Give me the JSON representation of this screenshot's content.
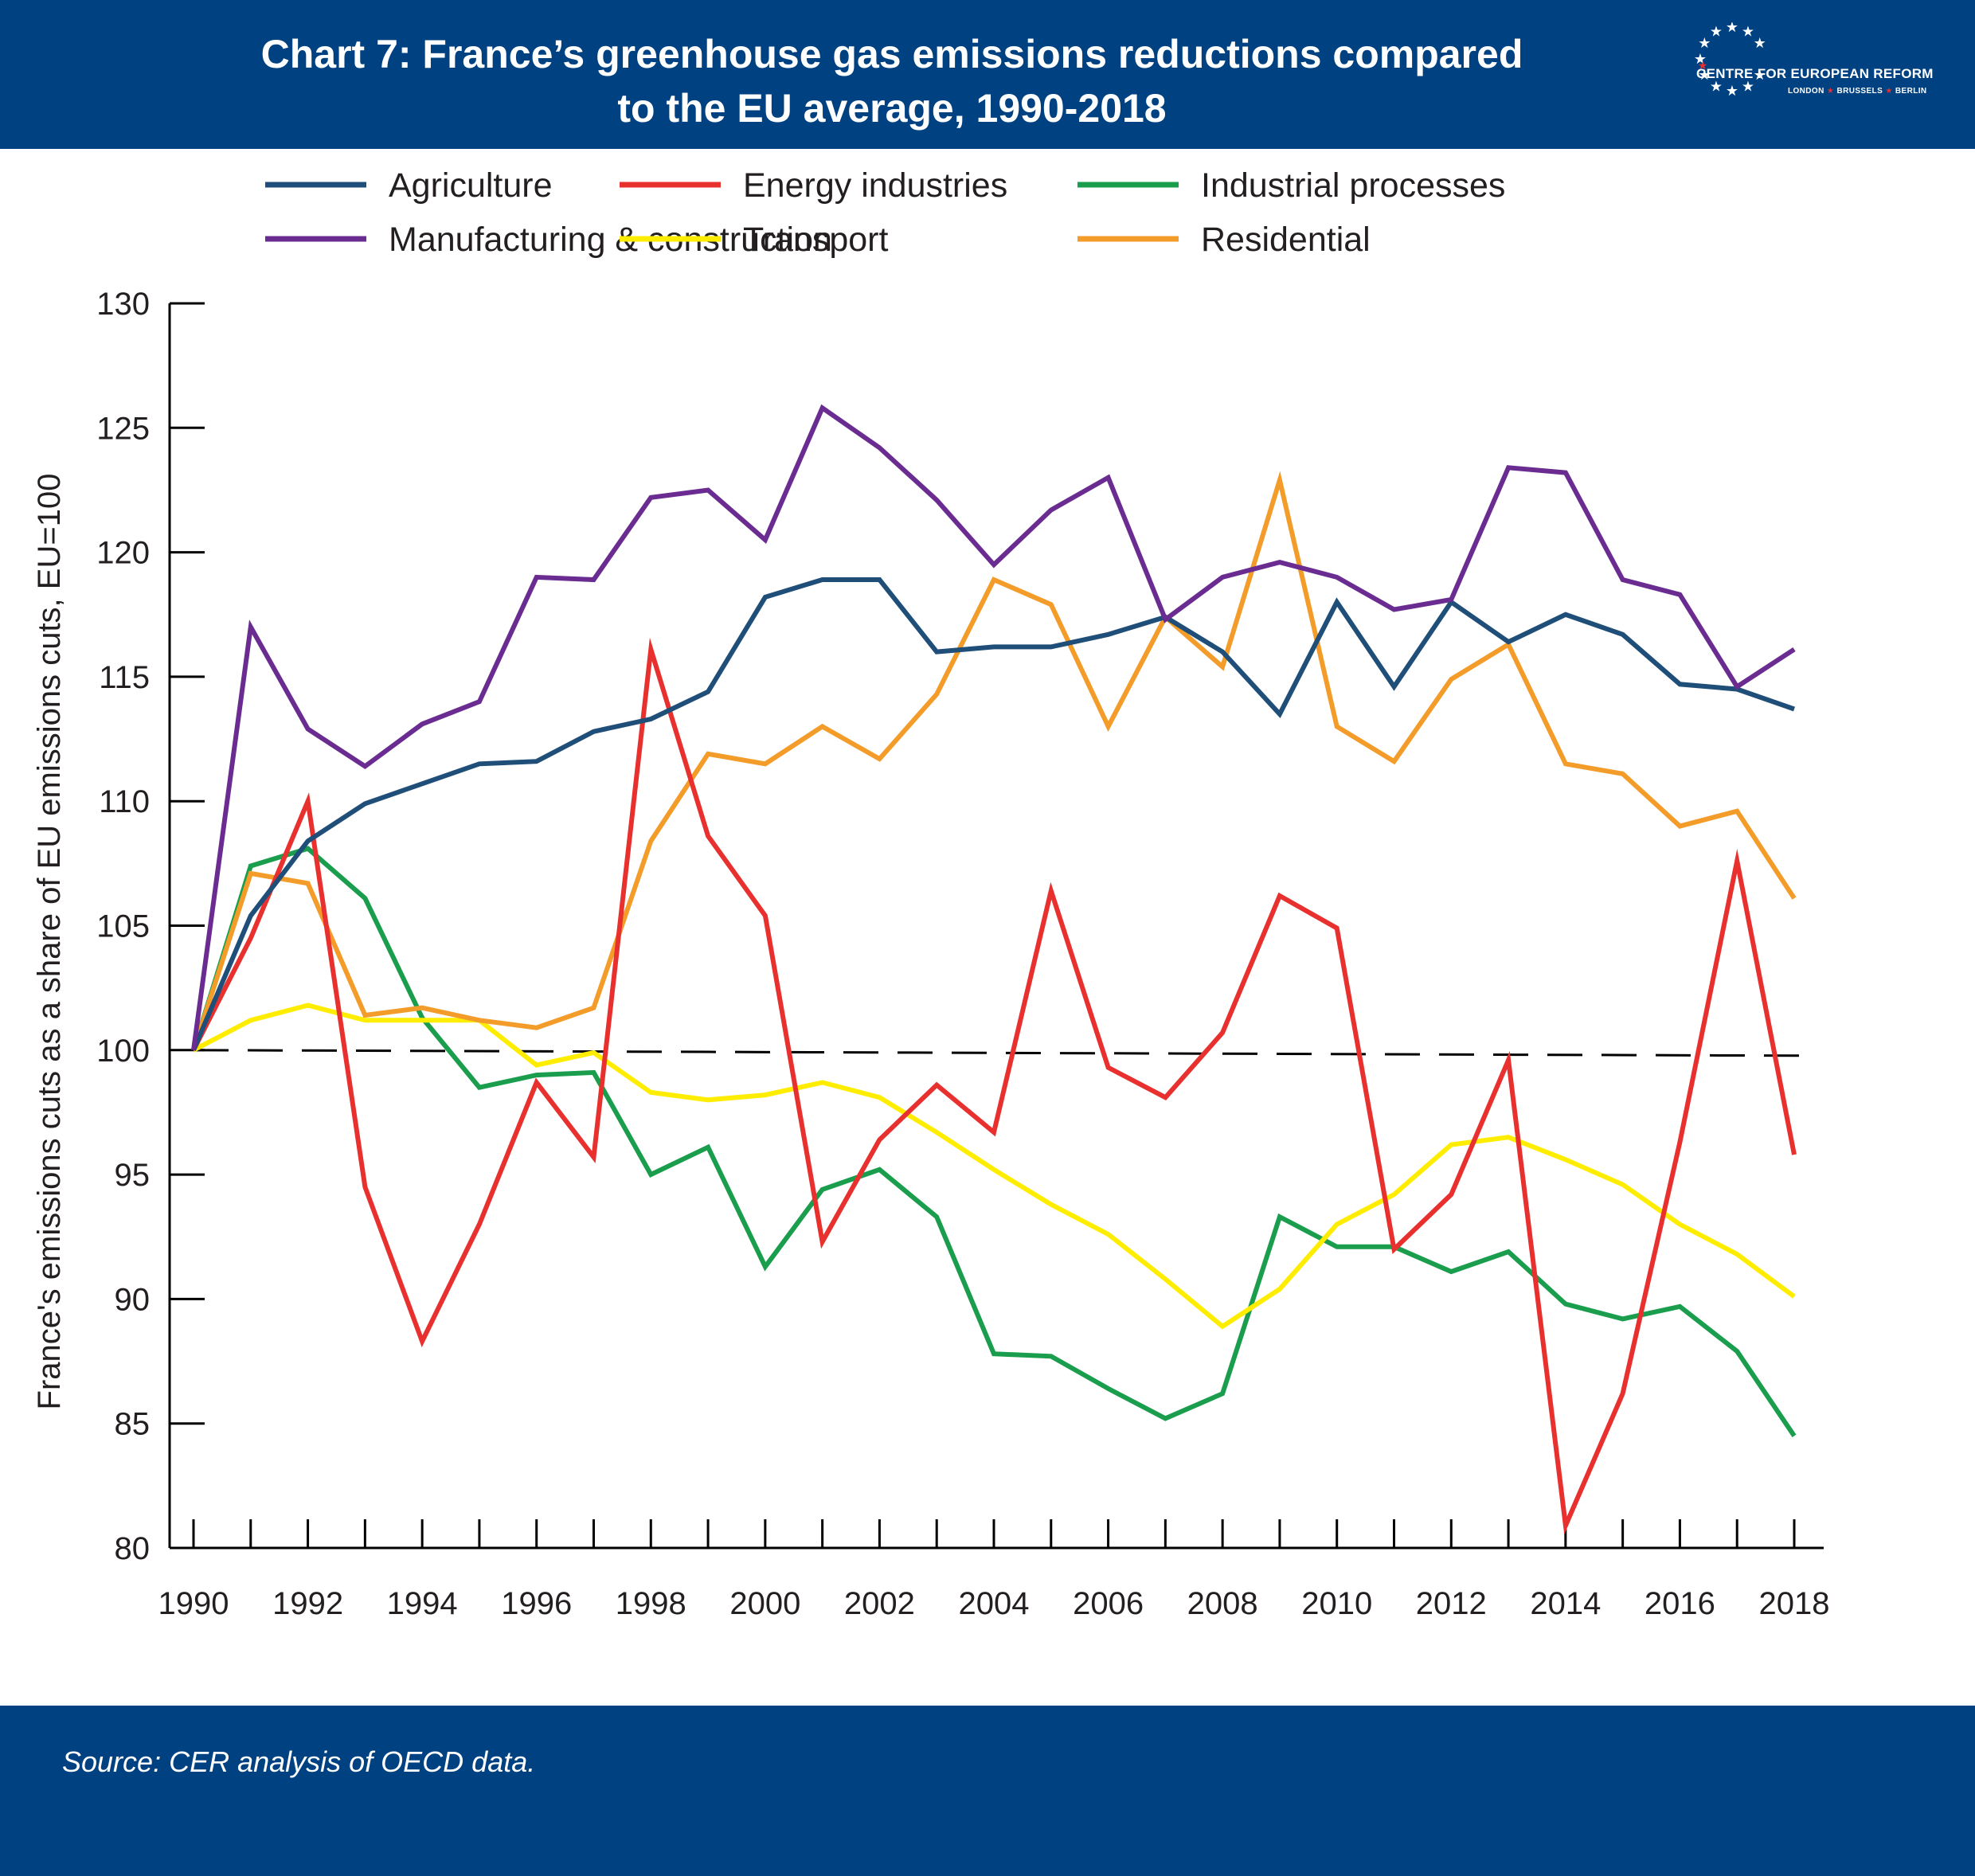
{
  "header": {
    "title_line1": "Chart 7: France’s greenhouse gas emissions reductions compared",
    "title_line2": "to the EU average, 1990-2018",
    "logo_name": "CENTRE FOR EUROPEAN REFORM",
    "logo_cities": [
      "LONDON",
      "BRUSSELS",
      "BERLIN"
    ],
    "background_color": "#004182"
  },
  "footer": {
    "source": "Source: CER analysis of OECD data."
  },
  "chart_data": {
    "type": "line",
    "ylabel": "France's emissions cuts as a share of EU emissions cuts, EU=100",
    "xlabel": "",
    "ylim": [
      80,
      130
    ],
    "yticks": [
      80,
      85,
      90,
      95,
      100,
      105,
      110,
      115,
      120,
      125,
      130
    ],
    "xtick_labels": [
      "1990",
      "1992",
      "1994",
      "1996",
      "1998",
      "2000",
      "2002",
      "2004",
      "2006",
      "2008",
      "2010",
      "2012",
      "2014",
      "2016",
      "2018"
    ],
    "x": [
      1990,
      1991,
      1992,
      1993,
      1994,
      1995,
      1996,
      1997,
      1998,
      1999,
      2000,
      2001,
      2002,
      2003,
      2004,
      2005,
      2006,
      2007,
      2008,
      2009,
      2010,
      2011,
      2012,
      2013,
      2014,
      2015,
      2016,
      2017,
      2018
    ],
    "legend_position": "top",
    "reference_line": {
      "value": 100,
      "style": "dashed",
      "color": "#000000"
    },
    "series": [
      {
        "name": "Agriculture",
        "color": "#1f4e79",
        "values": [
          100,
          105.4,
          108.4,
          109.9,
          110.7,
          111.5,
          111.6,
          112.8,
          113.3,
          114.4,
          118.2,
          118.9,
          118.9,
          116.0,
          116.2,
          116.2,
          116.7,
          117.4,
          116.0,
          113.5,
          118.0,
          114.6,
          118.0,
          116.4,
          117.5,
          116.7,
          114.7,
          114.5,
          113.7
        ]
      },
      {
        "name": "Energy industries",
        "color": "#e8312f",
        "values": [
          100,
          104.5,
          110.0,
          94.5,
          88.3,
          93.0,
          98.7,
          95.7,
          116.1,
          108.6,
          105.4,
          92.3,
          96.4,
          98.6,
          96.7,
          106.4,
          99.3,
          98.1,
          100.7,
          106.2,
          104.9,
          92.0,
          94.2,
          99.6,
          80.9,
          86.2,
          96.3,
          107.6,
          95.8
        ]
      },
      {
        "name": "Industrial processes",
        "color": "#1a9e4d",
        "values": [
          100,
          107.4,
          108.1,
          106.1,
          101.3,
          98.5,
          99.0,
          99.1,
          95.0,
          96.1,
          91.3,
          94.4,
          95.2,
          93.3,
          87.8,
          87.7,
          86.4,
          85.2,
          86.2,
          93.3,
          92.1,
          92.1,
          91.1,
          91.9,
          89.8,
          89.2,
          89.7,
          87.9,
          84.5
        ]
      },
      {
        "name": "Manufacturing & construction",
        "color": "#6a2c91",
        "values": [
          100,
          117.0,
          112.9,
          111.4,
          113.1,
          114.0,
          119.0,
          118.9,
          122.2,
          122.5,
          120.5,
          125.8,
          124.2,
          122.1,
          119.5,
          121.7,
          123.0,
          117.3,
          119.0,
          119.6,
          119.0,
          117.7,
          118.1,
          123.4,
          123.2,
          118.9,
          118.3,
          114.6,
          116.1
        ]
      },
      {
        "name": "Transport",
        "color": "#ffed00",
        "values": [
          100,
          101.2,
          101.8,
          101.2,
          101.2,
          101.2,
          99.4,
          99.9,
          98.3,
          98.0,
          98.2,
          98.7,
          98.1,
          96.7,
          95.2,
          93.8,
          92.6,
          90.8,
          88.9,
          90.4,
          93.0,
          94.2,
          96.2,
          96.5,
          95.6,
          94.6,
          93.0,
          91.8,
          90.1
        ]
      },
      {
        "name": "Residential",
        "color": "#f39c2a",
        "values": [
          100,
          107.1,
          106.7,
          101.4,
          101.7,
          101.2,
          100.9,
          101.7,
          108.4,
          111.9,
          111.5,
          113.0,
          111.7,
          114.3,
          118.9,
          117.9,
          113.0,
          117.4,
          115.4,
          122.9,
          113.0,
          111.6,
          114.9,
          116.3,
          111.5,
          111.1,
          109.0,
          109.6,
          106.1
        ]
      }
    ]
  }
}
